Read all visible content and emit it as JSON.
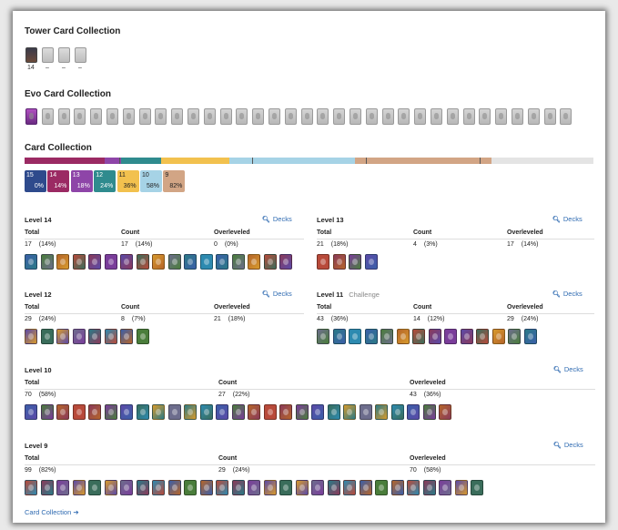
{
  "tower": {
    "title": "Tower Card Collection",
    "captions": [
      "14",
      "–",
      "–",
      "–"
    ]
  },
  "evo": {
    "title": "Evo Card Collection",
    "count_cards": 34
  },
  "collection": {
    "title": "Card Collection",
    "levels": [
      {
        "level": "15",
        "pct": "0%",
        "color": "#2e4a8c"
      },
      {
        "level": "14",
        "pct": "14%",
        "color": "#9b2a63"
      },
      {
        "level": "13",
        "pct": "18%",
        "color": "#8e45a8"
      },
      {
        "level": "12",
        "pct": "24%",
        "color": "#2f8b8e"
      },
      {
        "level": "11",
        "pct": "36%",
        "color": "#f2c14e",
        "dark": true
      },
      {
        "level": "10",
        "pct": "58%",
        "color": "#a6d3e6",
        "dark": true
      },
      {
        "level": "9",
        "pct": "82%",
        "color": "#d2a585",
        "dark": true
      }
    ],
    "bar_segments": [
      {
        "color": "#9b2a63",
        "share": 0.14
      },
      {
        "color": "#8e45a8",
        "share": 0.03
      },
      {
        "color": "#2f8b8e",
        "share": 0.07
      },
      {
        "color": "#f2c14e",
        "share": 0.12
      },
      {
        "color": "#a6d3e6",
        "share": 0.22
      },
      {
        "color": "#d2a585",
        "share": 0.24
      },
      {
        "color": "#e4e4e4",
        "share": 0.18
      }
    ]
  },
  "columns": {
    "total": "Total",
    "count": "Count",
    "overleveled": "Overleveled"
  },
  "decks_label": "Decks",
  "sections": [
    {
      "title": "Level 14",
      "sub": "",
      "total": "17",
      "total_pct": "(14%)",
      "count": "17",
      "count_pct": "(14%)",
      "over": "0",
      "over_pct": "(0%)",
      "cards": 17
    },
    {
      "title": "Level 13",
      "sub": "",
      "total": "21",
      "total_pct": "(18%)",
      "count": "4",
      "count_pct": "(3%)",
      "over": "17",
      "over_pct": "(14%)",
      "cards": 4
    },
    {
      "title": "Level 12",
      "sub": "",
      "total": "29",
      "total_pct": "(24%)",
      "count": "8",
      "count_pct": "(7%)",
      "over": "21",
      "over_pct": "(18%)",
      "cards": 8
    },
    {
      "title": "Level 11",
      "sub": "Challenge",
      "total": "43",
      "total_pct": "(36%)",
      "count": "14",
      "count_pct": "(12%)",
      "over": "29",
      "over_pct": "(24%)",
      "cards": 14
    },
    {
      "title": "Level 10",
      "sub": "",
      "total": "70",
      "total_pct": "(58%)",
      "count": "27",
      "count_pct": "(22%)",
      "over": "43",
      "over_pct": "(36%)",
      "cards": 27
    },
    {
      "title": "Level 9",
      "sub": "",
      "total": "99",
      "total_pct": "(82%)",
      "count": "29",
      "count_pct": "(24%)",
      "over": "70",
      "over_pct": "(58%)",
      "cards": 29
    }
  ],
  "footer": {
    "label": "Card Collection"
  }
}
